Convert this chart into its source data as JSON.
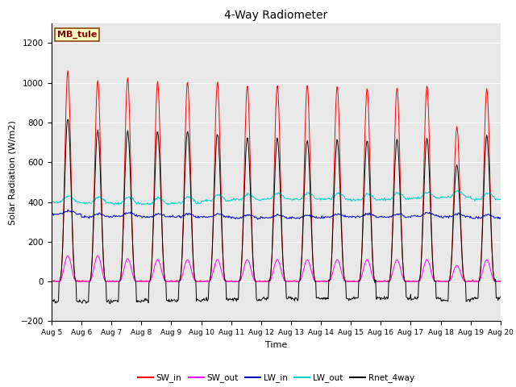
{
  "title": "4-Way Radiometer",
  "xlabel": "Time",
  "ylabel": "Solar Radiation (W/m2)",
  "ylim": [
    -200,
    1300
  ],
  "yticks": [
    -200,
    0,
    200,
    400,
    600,
    800,
    1000,
    1200
  ],
  "start_day": 5,
  "end_day": 20,
  "num_days": 15,
  "station_label": "MB_tule",
  "colors": {
    "SW_in": "#FF0000",
    "SW_out": "#FF00FF",
    "LW_in": "#0000CC",
    "LW_out": "#00CCCC",
    "Rnet_4way": "#000000"
  },
  "legend_labels": [
    "SW_in",
    "SW_out",
    "LW_in",
    "LW_out",
    "Rnet_4way"
  ],
  "bg_color": "#FFFFFF",
  "plot_bg_color": "#E8E8E8",
  "SW_in_peak": [
    1060,
    1010,
    1025,
    1005,
    1005,
    1005,
    985,
    990,
    990,
    985,
    975,
    975,
    985,
    780,
    970
  ],
  "SW_out_peak": [
    130,
    130,
    115,
    110,
    110,
    110,
    110,
    110,
    110,
    110,
    110,
    110,
    110,
    80,
    110
  ],
  "LW_in_base": [
    340,
    325,
    330,
    325,
    325,
    325,
    320,
    320,
    320,
    325,
    325,
    325,
    330,
    325,
    320
  ],
  "LW_out_base": [
    400,
    395,
    395,
    390,
    395,
    405,
    410,
    415,
    415,
    415,
    410,
    415,
    420,
    425,
    415
  ],
  "Rnet_peak": [
    820,
    760,
    760,
    755,
    755,
    750,
    725,
    720,
    710,
    710,
    710,
    715,
    720,
    585,
    730
  ],
  "Rnet_night": [
    -100,
    -100,
    -100,
    -95,
    -95,
    -90,
    -90,
    -85,
    -85,
    -85,
    -85,
    -85,
    -85,
    -95,
    -85
  ]
}
